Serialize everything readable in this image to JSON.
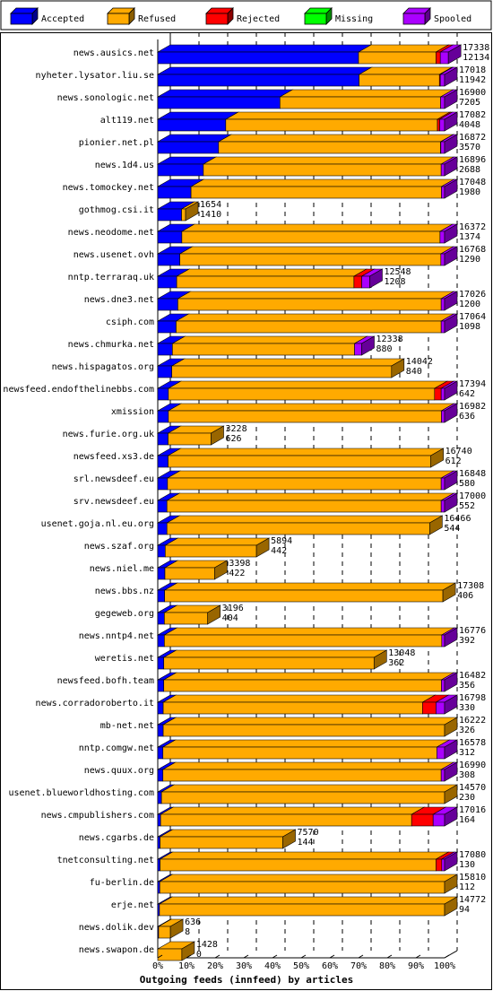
{
  "chart_data": {
    "type": "bar",
    "orientation": "horizontal",
    "stacked": true,
    "title": "",
    "xlabel": "Outgoing feeds (innfeed) by articles",
    "ylabel": "",
    "xlim": [
      0,
      100
    ],
    "x_ticks": [
      "0%",
      "10%",
      "20%",
      "30%",
      "40%",
      "50%",
      "60%",
      "70%",
      "80%",
      "90%",
      "100%"
    ],
    "grid": true,
    "legend_position": "top",
    "series": [
      {
        "name": "Accepted",
        "color": "#0000ff"
      },
      {
        "name": "Refused",
        "color": "#ffaa00"
      },
      {
        "name": "Rejected",
        "color": "#ff0000"
      },
      {
        "name": "Missing",
        "color": "#00ff00"
      },
      {
        "name": "Spooled",
        "color": "#aa00ff"
      }
    ],
    "rows": [
      {
        "label": "news.ausics.net",
        "total": "17338",
        "accepted": "12134",
        "segments": [
          70,
          27,
          1.5,
          0,
          2.8
        ]
      },
      {
        "label": "nyheter.lysator.liu.se",
        "total": "17018",
        "accepted": "11942",
        "segments": [
          70.2,
          28,
          0.3,
          0,
          1.5
        ]
      },
      {
        "label": "news.sonologic.net",
        "total": "16900",
        "accepted": "7205",
        "segments": [
          42.6,
          56,
          0,
          0,
          1.4
        ]
      },
      {
        "label": "alt119.net",
        "total": "17082",
        "accepted": "4048",
        "segments": [
          23.7,
          73.8,
          0.8,
          0,
          1.7
        ]
      },
      {
        "label": "pionier.net.pl",
        "total": "16872",
        "accepted": "3570",
        "segments": [
          21.2,
          77.4,
          0.1,
          0,
          1.3
        ]
      },
      {
        "label": "news.1d4.us",
        "total": "16896",
        "accepted": "2688",
        "segments": [
          15.9,
          82.9,
          0,
          0,
          1.2
        ]
      },
      {
        "label": "news.tomockey.net",
        "total": "17048",
        "accepted": "1980",
        "segments": [
          11.6,
          87.3,
          0,
          0,
          1.1
        ]
      },
      {
        "label": "gothmog.csi.it",
        "total": "1654",
        "accepted": "1410",
        "segments": [
          8.3,
          1.4,
          0,
          0,
          0
        ]
      },
      {
        "label": "news.neodome.net",
        "total": "16372",
        "accepted": "1374",
        "segments": [
          8.4,
          90,
          0,
          0,
          1.6
        ]
      },
      {
        "label": "news.usenet.ovh",
        "total": "16768",
        "accepted": "1290",
        "segments": [
          7.7,
          91,
          0,
          0,
          1.3
        ]
      },
      {
        "label": "nntp.terraraq.uk",
        "total": "12548",
        "accepted": "1208",
        "segments": [
          6.6,
          61.8,
          2.7,
          0,
          2.8
        ]
      },
      {
        "label": "news.dne3.net",
        "total": "17026",
        "accepted": "1200",
        "segments": [
          7,
          91.8,
          0,
          0,
          1.2
        ]
      },
      {
        "label": "csiph.com",
        "total": "17064",
        "accepted": "1098",
        "segments": [
          6.4,
          92.4,
          0,
          0,
          1.2
        ]
      },
      {
        "label": "news.chmurka.net",
        "total": "12338",
        "accepted": "880",
        "segments": [
          5.1,
          63.5,
          0,
          0,
          2.5
        ]
      },
      {
        "label": "news.hispagatos.org",
        "total": "14042",
        "accepted": "840",
        "segments": [
          4.9,
          76.6,
          0,
          0,
          0
        ]
      },
      {
        "label": "newsfeed.endofthelinebbs.com",
        "total": "17394",
        "accepted": "642",
        "segments": [
          3.7,
          92.8,
          2.3,
          0,
          1.2
        ]
      },
      {
        "label": "xmission",
        "total": "16982",
        "accepted": "636",
        "segments": [
          3.7,
          95.2,
          0,
          0,
          1.1
        ]
      },
      {
        "label": "news.furie.org.uk",
        "total": "3228",
        "accepted": "626",
        "segments": [
          3.6,
          15,
          0,
          0,
          0
        ]
      },
      {
        "label": "newsfeed.xs3.de",
        "total": "16740",
        "accepted": "612",
        "segments": [
          3.6,
          91.6,
          0,
          0,
          0
        ]
      },
      {
        "label": "srl.newsdeef.eu",
        "total": "16848",
        "accepted": "580",
        "segments": [
          3.4,
          95.4,
          0,
          0,
          1.2
        ]
      },
      {
        "label": "srv.newsdeef.eu",
        "total": "17000",
        "accepted": "552",
        "segments": [
          3.2,
          95.6,
          0,
          0,
          1.2
        ]
      },
      {
        "label": "usenet.goja.nl.eu.org",
        "total": "16466",
        "accepted": "544",
        "segments": [
          3.2,
          91.6,
          0,
          0,
          0
        ]
      },
      {
        "label": "news.szaf.org",
        "total": "5894",
        "accepted": "442",
        "segments": [
          2.6,
          31.8,
          0,
          0,
          0
        ]
      },
      {
        "label": "news.niel.me",
        "total": "3398",
        "accepted": "422",
        "segments": [
          2.5,
          17.3,
          0,
          0,
          0
        ]
      },
      {
        "label": "news.bbs.nz",
        "total": "17308",
        "accepted": "406",
        "segments": [
          2.4,
          97,
          0,
          0,
          0
        ]
      },
      {
        "label": "gegeweb.org",
        "total": "3196",
        "accepted": "404",
        "segments": [
          2.3,
          15.1,
          0,
          0,
          0
        ]
      },
      {
        "label": "news.nntp4.net",
        "total": "16776",
        "accepted": "392",
        "segments": [
          2.3,
          96.7,
          0,
          0,
          1
        ]
      },
      {
        "label": "weretis.net",
        "total": "13048",
        "accepted": "362",
        "segments": [
          2.1,
          73.3,
          0,
          0,
          0
        ]
      },
      {
        "label": "newsfeed.bofh.team",
        "total": "16482",
        "accepted": "356",
        "segments": [
          2.1,
          96.8,
          0,
          0,
          1.1
        ]
      },
      {
        "label": "news.corradoroberto.it",
        "total": "16798",
        "accepted": "330",
        "segments": [
          1.9,
          90.4,
          4.7,
          0,
          3
        ]
      },
      {
        "label": "mb-net.net",
        "total": "16222",
        "accepted": "326",
        "segments": [
          1.9,
          98.1,
          0,
          0,
          0
        ]
      },
      {
        "label": "nntp.comgw.net",
        "total": "16578",
        "accepted": "312",
        "segments": [
          1.8,
          95.5,
          0,
          0,
          2.7
        ]
      },
      {
        "label": "news.quux.org",
        "total": "16990",
        "accepted": "308",
        "segments": [
          1.8,
          97,
          0,
          0,
          1.2
        ]
      },
      {
        "label": "usenet.blueworldhosting.com",
        "total": "14570",
        "accepted": "230",
        "segments": [
          1.3,
          98.7,
          0,
          0,
          0
        ]
      },
      {
        "label": "news.cmpublishers.com",
        "total": "17016",
        "accepted": "164",
        "segments": [
          1,
          87.5,
          7.5,
          0,
          4
        ]
      },
      {
        "label": "news.cgarbs.de",
        "total": "7570",
        "accepted": "144",
        "segments": [
          0.8,
          42.8,
          0,
          0,
          0
        ]
      },
      {
        "label": "tnetconsulting.net",
        "total": "17080",
        "accepted": "130",
        "segments": [
          0.8,
          96.2,
          2,
          0,
          1
        ]
      },
      {
        "label": "fu-berlin.de",
        "total": "15810",
        "accepted": "112",
        "segments": [
          0.7,
          99.3,
          0,
          0,
          0
        ]
      },
      {
        "label": "erje.net",
        "total": "14772",
        "accepted": "94",
        "segments": [
          0.6,
          99.4,
          0,
          0,
          0
        ]
      },
      {
        "label": "news.dolik.dev",
        "total": "636",
        "accepted": "8",
        "segments": [
          0.3,
          4.1,
          0,
          0,
          0
        ]
      },
      {
        "label": "news.swapon.de",
        "total": "1428",
        "accepted": "0",
        "segments": [
          0,
          8.4,
          0,
          0,
          0
        ]
      }
    ]
  }
}
